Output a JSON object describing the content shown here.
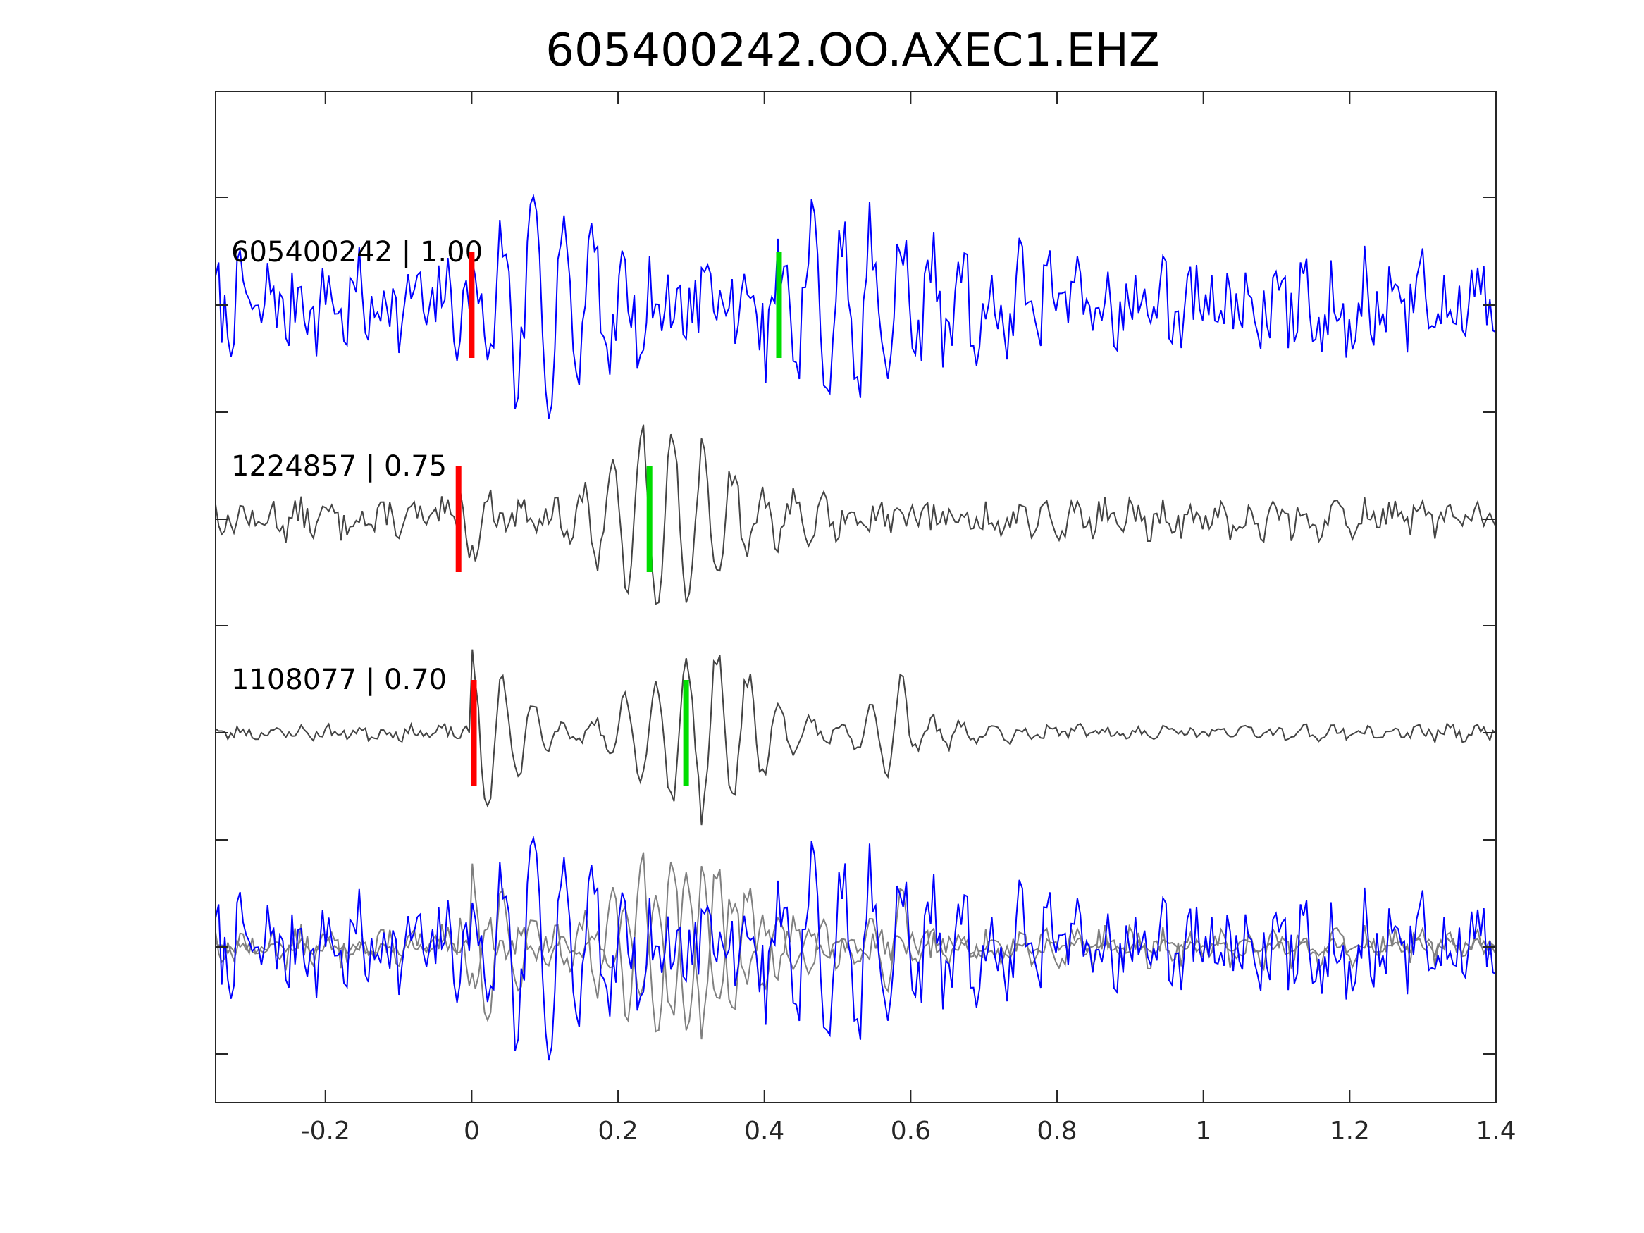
{
  "chart_data": {
    "type": "line",
    "title": "605400242.OO.AXEC1.EHZ",
    "xlabel": "",
    "ylabel": "",
    "xlim": [
      -0.35,
      1.4
    ],
    "x_ticks": [
      "-0.2",
      "0",
      "0.2",
      "0.4",
      "0.6",
      "0.8",
      "1",
      "1.2",
      "1.4"
    ],
    "x_tick_values": [
      -0.2,
      0,
      0.2,
      0.4,
      0.6,
      0.8,
      1.0,
      1.2,
      1.4
    ],
    "grid": false,
    "legend": "none",
    "traces": [
      {
        "label": "605400242 | 1.00",
        "color": "#0000ff",
        "seed": 7,
        "noise": 0.38,
        "burst": 1.0,
        "onset": 0.0,
        "duration": 0.58,
        "tail": 0.5,
        "p_pick": 0.0,
        "s_pick": 0.42
      },
      {
        "label": "1224857 | 0.75",
        "color": "#444444",
        "seed": 13,
        "noise": 0.15,
        "burst": 0.95,
        "onset": -0.02,
        "duration": 0.42,
        "tail": 0.28,
        "p_pick": -0.018,
        "s_pick": 0.243
      },
      {
        "label": "1108077 | 0.70",
        "color": "#444444",
        "seed": 23,
        "noise": 0.06,
        "burst": 1.0,
        "onset": 0.0,
        "duration": 0.6,
        "tail": 0.15,
        "p_pick": 0.003,
        "s_pick": 0.293
      }
    ],
    "overlay": {
      "colors": [
        "#0000ff",
        "#808080",
        "#808080"
      ]
    },
    "pick_colors": {
      "p": "#ff0000",
      "s": "#00dd00"
    }
  }
}
